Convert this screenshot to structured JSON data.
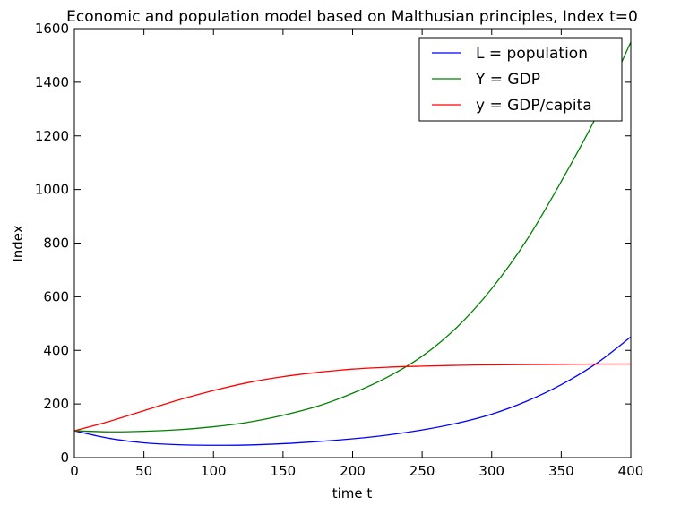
{
  "chart_data": {
    "type": "line",
    "title": "Economic and population model based on Malthusian principles, Index t=0",
    "xlabel": "time t",
    "ylabel": "Index",
    "xlim": [
      0,
      400
    ],
    "ylim": [
      0,
      1600
    ],
    "xticks": [
      0,
      50,
      100,
      150,
      200,
      250,
      300,
      350,
      400
    ],
    "yticks": [
      0,
      200,
      400,
      600,
      800,
      1000,
      1200,
      1400,
      1600
    ],
    "grid": false,
    "legend_position": "top-right",
    "series": [
      {
        "name": "L = population",
        "color": "#0000ff",
        "x": [
          0,
          25,
          50,
          75,
          100,
          125,
          150,
          175,
          200,
          225,
          250,
          275,
          300,
          325,
          350,
          375,
          400
        ],
        "y": [
          100,
          72,
          55,
          48,
          46,
          47,
          52,
          60,
          70,
          84,
          103,
          128,
          162,
          210,
          272,
          350,
          450
        ]
      },
      {
        "name": "Y = GDP",
        "color": "#008000",
        "x": [
          0,
          25,
          50,
          75,
          100,
          125,
          150,
          175,
          200,
          225,
          250,
          275,
          300,
          325,
          350,
          375,
          400
        ],
        "y": [
          100,
          96,
          98,
          104,
          115,
          132,
          158,
          192,
          240,
          300,
          378,
          486,
          630,
          810,
          1030,
          1270,
          1550
        ]
      },
      {
        "name": "y = GDP/capita",
        "color": "#ff0000",
        "x": [
          0,
          25,
          50,
          75,
          100,
          125,
          150,
          175,
          200,
          225,
          250,
          275,
          300,
          325,
          350,
          375,
          400
        ],
        "y": [
          100,
          135,
          175,
          215,
          250,
          280,
          302,
          318,
          330,
          337,
          341,
          344,
          346,
          347,
          348,
          349,
          349
        ]
      }
    ]
  }
}
